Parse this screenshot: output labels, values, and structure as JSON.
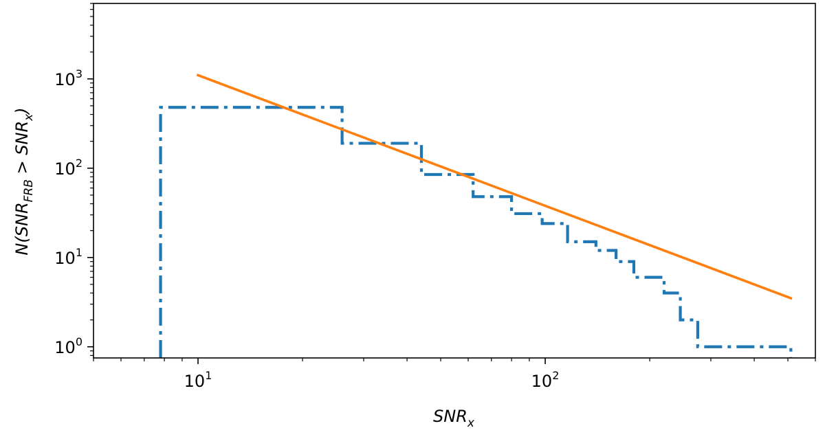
{
  "chart_data": {
    "type": "line",
    "title": "",
    "xlabel": {
      "main": "SNR",
      "sub": "x"
    },
    "ylabel": {
      "prefix": "N(SNR",
      "sub1": "FRB",
      "mid": " > SNR",
      "sub2": "x",
      "suffix": ")"
    },
    "x_scale": "log",
    "y_scale": "log",
    "xlim": [
      5.0,
      600
    ],
    "ylim": [
      0.75,
      7000
    ],
    "x_ticks": [
      {
        "base": "10",
        "exp": "1",
        "value": 10
      },
      {
        "base": "10",
        "exp": "2",
        "value": 100
      }
    ],
    "y_ticks": [
      {
        "base": "10",
        "exp": "0",
        "value": 1
      },
      {
        "base": "10",
        "exp": "1",
        "value": 10
      },
      {
        "base": "10",
        "exp": "2",
        "value": 100
      },
      {
        "base": "10",
        "exp": "3",
        "value": 1000
      }
    ],
    "grid": false,
    "legend": "none",
    "series": [
      {
        "style": "step-dashdot",
        "color": "#1f77b4",
        "points": [
          [
            7.8,
            0.75
          ],
          [
            7.8,
            480
          ],
          [
            26,
            480
          ],
          [
            26,
            190
          ],
          [
            44,
            190
          ],
          [
            44,
            85
          ],
          [
            62,
            85
          ],
          [
            62,
            48
          ],
          [
            80,
            48
          ],
          [
            80,
            31
          ],
          [
            98,
            31
          ],
          [
            98,
            24
          ],
          [
            116,
            24
          ],
          [
            116,
            15
          ],
          [
            140,
            15
          ],
          [
            140,
            12
          ],
          [
            160,
            12
          ],
          [
            160,
            9
          ],
          [
            180,
            9
          ],
          [
            180,
            6
          ],
          [
            220,
            6
          ],
          [
            220,
            4
          ],
          [
            245,
            4
          ],
          [
            245,
            2
          ],
          [
            275,
            2
          ],
          [
            275,
            1
          ],
          [
            510,
            1
          ],
          [
            510,
            0.75
          ]
        ]
      },
      {
        "style": "line",
        "color": "#ff7f0e",
        "points": [
          [
            10,
            1100
          ],
          [
            510,
            3.5
          ]
        ]
      }
    ]
  }
}
